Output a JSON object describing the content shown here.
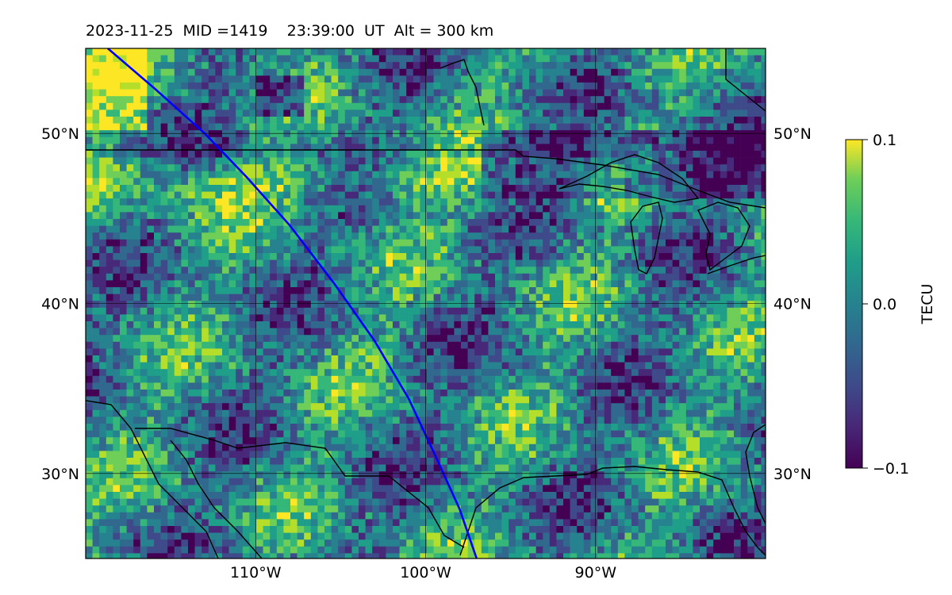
{
  "title": {
    "date": "2023-11-25",
    "mid": "MID =1419",
    "time": "23:39:00  UT",
    "alt": "Alt = 300 km"
  },
  "map": {
    "lon_range": [
      -120,
      -80
    ],
    "lat_range": [
      25,
      55
    ],
    "lon_ticks": [
      {
        "value": -110,
        "label": "110°W"
      },
      {
        "value": -100,
        "label": "100°W"
      },
      {
        "value": -90,
        "label": "90°W"
      }
    ],
    "lat_ticks": [
      {
        "value": 50,
        "label": "50°N"
      },
      {
        "value": 40,
        "label": "40°N"
      },
      {
        "value": 30,
        "label": "30°N"
      }
    ],
    "grid": true
  },
  "colorbar": {
    "label": "TECU",
    "min": -0.1,
    "max": 0.1,
    "ticks": [
      "0.1",
      "0.0",
      "−0.1"
    ],
    "colormap": "viridis"
  },
  "satellite_track": {
    "color": "#0000ff",
    "points": [
      [
        -118.7,
        55
      ],
      [
        -115.9,
        52.6
      ],
      [
        -113,
        50
      ],
      [
        -110.5,
        47.4
      ],
      [
        -108,
        44.6
      ],
      [
        -105.4,
        41.2
      ],
      [
        -103,
        37.8
      ],
      [
        -101,
        34.4
      ],
      [
        -99.5,
        31.2
      ],
      [
        -98,
        27.9
      ],
      [
        -97,
        25
      ]
    ]
  }
}
